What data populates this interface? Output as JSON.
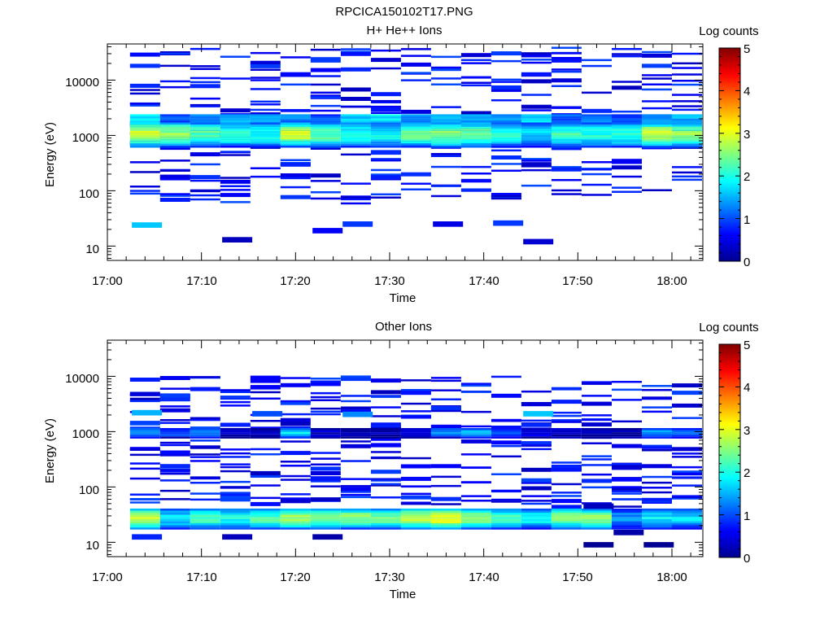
{
  "figure_title": "RPCICA150102T17.PNG",
  "chart_data": [
    {
      "type": "heatmap",
      "title": "H+ He++ Ions",
      "xlabel": "Time",
      "ylabel": "Energy (eV)",
      "x_ticks": [
        "17:00",
        "17:10",
        "17:20",
        "17:30",
        "17:40",
        "17:50",
        "18:00"
      ],
      "x_range_minutes": [
        0,
        63
      ],
      "y_scale": "log",
      "y_range": [
        5.5,
        45000
      ],
      "y_ticks": [
        "10",
        "100",
        "1000",
        "10000"
      ],
      "colorbar": {
        "label": "Log counts",
        "range": [
          0,
          5
        ],
        "ticks": [
          "0",
          "1",
          "2",
          "3",
          "4",
          "5"
        ]
      },
      "time_bins_minutes": [
        2.4,
        5.6,
        8.8,
        12,
        15.2,
        18.4,
        21.6,
        24.8,
        28,
        31.2,
        34.4,
        37.6,
        40.8,
        44,
        47.2,
        50.4,
        53.6,
        56.8,
        60
      ],
      "main_band": {
        "energy_range_eV": [
          600,
          1700
        ],
        "log_counts_per_bin": [
          2.9,
          2.6,
          2.3,
          2.1,
          2.0,
          2.9,
          2.3,
          2.0,
          1.9,
          2.4,
          2.6,
          2.4,
          2.0,
          1.7,
          2.2,
          2.0,
          2.1,
          2.8,
          2.6
        ]
      },
      "upper_band": {
        "energy_range_eV": [
          1700,
          2300
        ],
        "log_counts_per_bin": [
          1.8,
          1.0,
          1.2,
          1.5,
          1.6,
          1.2,
          1.0,
          1.7,
          1.8,
          1.4,
          1.6,
          1.3,
          1.4,
          1.7,
          1.1,
          1.2,
          1.0,
          1.3,
          1.5
        ]
      },
      "sparse_energy_range_eV": [
        60,
        40000
      ],
      "sparse_level": 0.3,
      "highlighted_cells": [
        {
          "start_min": 2.6,
          "end_min": 5.8,
          "energy_eV": 24,
          "log_counts": 1.6
        },
        {
          "start_min": 12.2,
          "end_min": 15.4,
          "energy_eV": 13,
          "log_counts": 0.3
        },
        {
          "start_min": 21.8,
          "end_min": 25.0,
          "energy_eV": 19,
          "log_counts": 0.6
        },
        {
          "start_min": 25.0,
          "end_min": 28.2,
          "energy_eV": 25,
          "log_counts": 0.9
        },
        {
          "start_min": 34.6,
          "end_min": 37.8,
          "energy_eV": 25,
          "log_counts": 0.5
        },
        {
          "start_min": 41.0,
          "end_min": 44.2,
          "energy_eV": 26,
          "log_counts": 0.9
        },
        {
          "start_min": 44.2,
          "end_min": 47.4,
          "energy_eV": 12,
          "log_counts": 0.4
        }
      ]
    },
    {
      "type": "heatmap",
      "title": "Other Ions",
      "xlabel": "Time",
      "ylabel": "Energy (eV)",
      "x_ticks": [
        "17:00",
        "17:10",
        "17:20",
        "17:30",
        "17:40",
        "17:50",
        "18:00"
      ],
      "x_range_minutes": [
        0,
        63
      ],
      "y_scale": "log",
      "y_range": [
        5.5,
        45000
      ],
      "y_ticks": [
        "10",
        "100",
        "1000",
        "10000"
      ],
      "colorbar": {
        "label": "Log counts",
        "range": [
          0,
          5
        ],
        "ticks": [
          "0",
          "1",
          "2",
          "3",
          "4",
          "5"
        ]
      },
      "time_bins_minutes": [
        2.4,
        5.6,
        8.8,
        12,
        15.2,
        18.4,
        21.6,
        24.8,
        28,
        31.2,
        34.4,
        37.6,
        40.8,
        44,
        47.2,
        50.4,
        53.6,
        56.8,
        60
      ],
      "low_band": {
        "energy_range_eV": [
          17,
          40
        ],
        "log_counts_per_bin": [
          2.9,
          1.8,
          2.2,
          2.0,
          2.3,
          2.7,
          2.4,
          2.6,
          2.4,
          2.8,
          3.1,
          2.6,
          2.2,
          1.9,
          2.5,
          2.6,
          1.4,
          1.8,
          1.7
        ]
      },
      "kev_band": {
        "energy_range_eV": [
          750,
          1150
        ],
        "log_counts_per_bin": [
          1.5,
          1.1,
          1.4,
          0.3,
          0.3,
          1.8,
          0.4,
          0.3,
          0.2,
          0.3,
          1.3,
          1.5,
          1.0,
          0.6,
          0.3,
          0.3,
          0.2,
          1.4,
          1.2
        ]
      },
      "sparse_energy_range_eV": [
        45,
        10500
      ],
      "sparse_level": 0.3,
      "highlighted_cells": [
        {
          "start_min": 2.6,
          "end_min": 5.8,
          "energy_eV": 2200,
          "log_counts": 1.5
        },
        {
          "start_min": 15.4,
          "end_min": 18.6,
          "energy_eV": 2100,
          "log_counts": 1.0
        },
        {
          "start_min": 25.0,
          "end_min": 28.2,
          "energy_eV": 2050,
          "log_counts": 1.3
        },
        {
          "start_min": 44.2,
          "end_min": 47.4,
          "energy_eV": 2100,
          "log_counts": 1.6
        },
        {
          "start_min": 2.6,
          "end_min": 5.8,
          "energy_eV": 12.5,
          "log_counts": 0.8
        },
        {
          "start_min": 12.2,
          "end_min": 15.4,
          "energy_eV": 12.5,
          "log_counts": 0.3
        },
        {
          "start_min": 21.8,
          "end_min": 25.0,
          "energy_eV": 12.5,
          "log_counts": 0.2
        },
        {
          "start_min": 50.6,
          "end_min": 53.8,
          "energy_eV": 9,
          "log_counts": 0.1
        },
        {
          "start_min": 50.6,
          "end_min": 53.8,
          "energy_eV": 45,
          "log_counts": 0.3
        },
        {
          "start_min": 53.8,
          "end_min": 57.0,
          "energy_eV": 15,
          "log_counts": 0.2
        },
        {
          "start_min": 57.0,
          "end_min": 60.2,
          "energy_eV": 9,
          "log_counts": 0.1
        }
      ]
    }
  ]
}
